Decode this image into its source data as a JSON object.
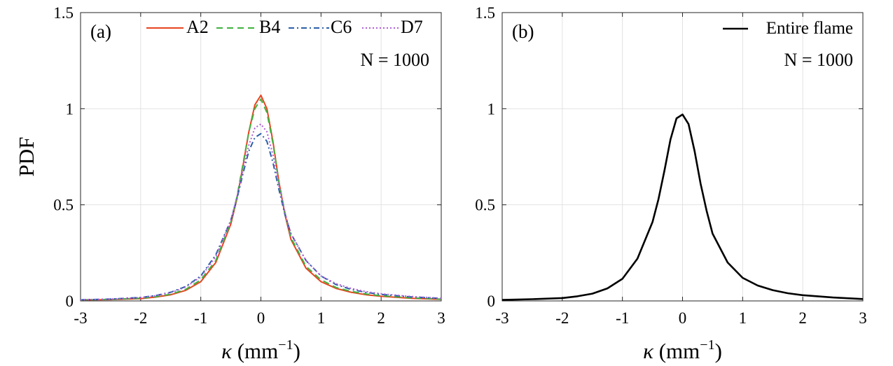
{
  "chart_data": [
    {
      "type": "line",
      "panel_label": "(a)",
      "xlabel": "κ (mm⁻¹)",
      "ylabel": "PDF",
      "xlim": [
        -3,
        3
      ],
      "ylim": [
        0,
        1.5
      ],
      "xticks": [
        -3,
        -2,
        -1,
        0,
        1,
        2,
        3
      ],
      "yticks": [
        0,
        0.5,
        1,
        1.5
      ],
      "xtick_labels": [
        "-3",
        "-2",
        "-1",
        "0",
        "1",
        "2",
        "3"
      ],
      "ytick_labels": [
        "0",
        "0.5",
        "1",
        "1.5"
      ],
      "grid": true,
      "legend_position": "top-right",
      "annotation": "N = 1000",
      "x": [
        -3,
        -2.5,
        -2,
        -1.75,
        -1.5,
        -1.25,
        -1,
        -0.75,
        -0.5,
        -0.4,
        -0.3,
        -0.2,
        -0.1,
        0,
        0.1,
        0.2,
        0.3,
        0.4,
        0.5,
        0.75,
        1,
        1.25,
        1.5,
        1.75,
        2,
        2.5,
        3
      ],
      "series": [
        {
          "name": "A2",
          "color": "#e8441f",
          "dash": "solid",
          "values": [
            0.005,
            0.007,
            0.012,
            0.02,
            0.032,
            0.055,
            0.1,
            0.2,
            0.4,
            0.53,
            0.7,
            0.88,
            1.02,
            1.07,
            1.0,
            0.83,
            0.62,
            0.45,
            0.32,
            0.17,
            0.1,
            0.065,
            0.045,
            0.032,
            0.024,
            0.014,
            0.008
          ]
        },
        {
          "name": "B4",
          "color": "#3fb23f",
          "dash": "dashed",
          "values": [
            0.005,
            0.008,
            0.014,
            0.022,
            0.035,
            0.06,
            0.11,
            0.21,
            0.41,
            0.54,
            0.71,
            0.88,
            1.0,
            1.05,
            0.98,
            0.82,
            0.62,
            0.46,
            0.33,
            0.18,
            0.11,
            0.07,
            0.05,
            0.036,
            0.027,
            0.016,
            0.009
          ]
        },
        {
          "name": "C6",
          "color": "#2b5fa8",
          "dash": "dashdot",
          "values": [
            0.006,
            0.01,
            0.018,
            0.028,
            0.045,
            0.075,
            0.13,
            0.24,
            0.42,
            0.53,
            0.66,
            0.78,
            0.85,
            0.87,
            0.83,
            0.72,
            0.58,
            0.45,
            0.35,
            0.21,
            0.13,
            0.085,
            0.06,
            0.044,
            0.034,
            0.021,
            0.013
          ]
        },
        {
          "name": "D7",
          "color": "#b05fd6",
          "dash": "dotted",
          "values": [
            0.006,
            0.01,
            0.017,
            0.027,
            0.043,
            0.072,
            0.125,
            0.23,
            0.42,
            0.54,
            0.68,
            0.81,
            0.9,
            0.92,
            0.88,
            0.76,
            0.6,
            0.46,
            0.35,
            0.21,
            0.13,
            0.09,
            0.065,
            0.048,
            0.037,
            0.023,
            0.014
          ]
        }
      ]
    },
    {
      "type": "line",
      "panel_label": "(b)",
      "xlabel": "κ (mm⁻¹)",
      "ylabel": "",
      "xlim": [
        -3,
        3
      ],
      "ylim": [
        0,
        1.5
      ],
      "xticks": [
        -3,
        -2,
        -1,
        0,
        1,
        2,
        3
      ],
      "yticks": [
        0,
        0.5,
        1,
        1.5
      ],
      "xtick_labels": [
        "-3",
        "-2",
        "-1",
        "0",
        "1",
        "2",
        "3"
      ],
      "ytick_labels": [
        "0",
        "0.5",
        "1",
        "1.5"
      ],
      "grid": true,
      "legend_position": "top-right",
      "annotation": "N = 1000",
      "x": [
        -3,
        -2.5,
        -2,
        -1.75,
        -1.5,
        -1.25,
        -1,
        -0.75,
        -0.5,
        -0.4,
        -0.3,
        -0.2,
        -0.1,
        0,
        0.1,
        0.2,
        0.3,
        0.4,
        0.5,
        0.75,
        1,
        1.25,
        1.5,
        1.75,
        2,
        2.5,
        3
      ],
      "series": [
        {
          "name": "Entire flame",
          "color": "#000000",
          "dash": "solid",
          "values": [
            0.005,
            0.009,
            0.015,
            0.024,
            0.038,
            0.065,
            0.115,
            0.22,
            0.41,
            0.53,
            0.68,
            0.84,
            0.95,
            0.97,
            0.92,
            0.78,
            0.61,
            0.47,
            0.35,
            0.2,
            0.12,
            0.08,
            0.056,
            0.04,
            0.03,
            0.018,
            0.01
          ]
        }
      ]
    }
  ]
}
